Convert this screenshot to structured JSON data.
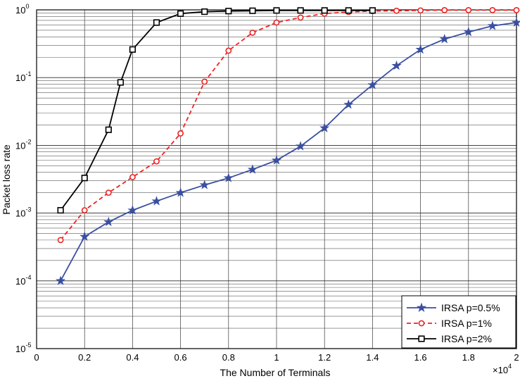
{
  "chart_data": {
    "type": "line",
    "title": "",
    "xlabel": "The Number of Terminals",
    "ylabel": "Packet loss rate",
    "x_multiplier_label": "×10",
    "x_multiplier_exp": "4",
    "xlim": [
      0,
      2
    ],
    "ylim": [
      1e-05,
      1
    ],
    "yscale": "log",
    "grid": true,
    "legend_position": "bottom-right",
    "x_ticks": [
      "0",
      "0.2",
      "0.4",
      "0.6",
      "0.8",
      "1",
      "1.2",
      "1.4",
      "1.6",
      "1.8",
      "2"
    ],
    "y_ticks": [
      {
        "base": "10",
        "exp": "-5"
      },
      {
        "base": "10",
        "exp": "-4"
      },
      {
        "base": "10",
        "exp": "-3"
      },
      {
        "base": "10",
        "exp": "-2"
      },
      {
        "base": "10",
        "exp": "-1"
      },
      {
        "base": "10",
        "exp": "0"
      }
    ],
    "series": [
      {
        "name": "IRSA p=0.5%",
        "color": "#3a4fa0",
        "marker": "star",
        "dash": "solid",
        "x": [
          0.1,
          0.2,
          0.3,
          0.4,
          0.5,
          0.6,
          0.7,
          0.8,
          0.9,
          1.0,
          1.1,
          1.2,
          1.3,
          1.4,
          1.5,
          1.6,
          1.7,
          1.8,
          1.9,
          2.0
        ],
        "y": [
          0.0001,
          0.00045,
          0.00074,
          0.0011,
          0.0015,
          0.002,
          0.0026,
          0.0033,
          0.0044,
          0.006,
          0.0097,
          0.018,
          0.04,
          0.078,
          0.15,
          0.26,
          0.37,
          0.47,
          0.58,
          0.65
        ]
      },
      {
        "name": "IRSA p=1%",
        "color": "#ee2222",
        "marker": "circle",
        "dash": "dashed",
        "x": [
          0.1,
          0.2,
          0.3,
          0.4,
          0.5,
          0.6,
          0.7,
          0.8,
          0.9,
          1.0,
          1.1,
          1.2,
          1.3,
          1.4,
          1.5,
          1.6,
          1.7,
          1.8,
          1.9,
          2.0
        ],
        "y": [
          0.0004,
          0.0011,
          0.002,
          0.0034,
          0.0058,
          0.015,
          0.087,
          0.25,
          0.46,
          0.65,
          0.77,
          0.88,
          0.93,
          0.96,
          0.97,
          0.98,
          0.99,
          0.99,
          0.99,
          0.99
        ]
      },
      {
        "name": "IRSA p=2%",
        "color": "#000000",
        "marker": "square",
        "dash": "solid",
        "x": [
          0.1,
          0.2,
          0.3,
          0.35,
          0.4,
          0.5,
          0.6,
          0.7,
          0.8,
          0.9,
          1.0,
          1.1,
          1.2,
          1.3,
          1.4
        ],
        "y": [
          0.0011,
          0.0033,
          0.017,
          0.085,
          0.26,
          0.65,
          0.88,
          0.94,
          0.96,
          0.97,
          0.98,
          0.98,
          0.98,
          0.98,
          0.98
        ]
      }
    ]
  }
}
